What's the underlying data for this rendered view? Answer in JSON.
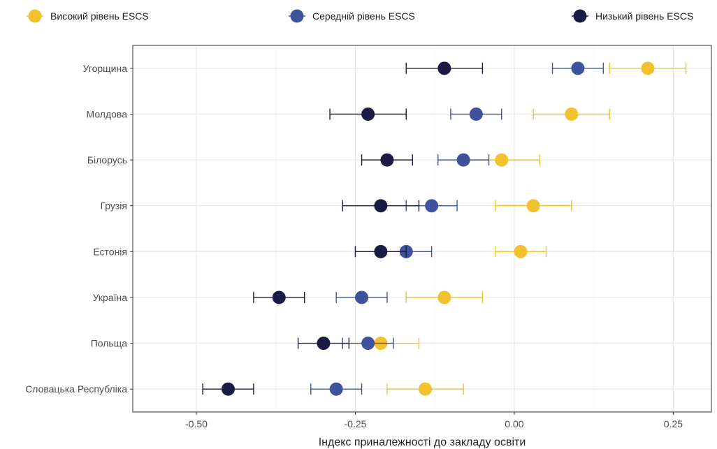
{
  "chart_data": {
    "type": "scatter",
    "subtype": "dot-with-error-bars",
    "orientation": "horizontal",
    "title": "",
    "xlabel": "Індекс приналежності до закладу освіти",
    "ylabel": "",
    "xlim": [
      -0.6,
      0.31
    ],
    "x_ticks": [
      -0.5,
      -0.25,
      0.0,
      0.25
    ],
    "x_tick_labels": [
      "-0.50",
      "-0.25",
      "0.00",
      "0.25"
    ],
    "categories": [
      "Угорщина",
      "Молдова",
      "Білорусь",
      "Грузія",
      "Естонія",
      "Україна",
      "Польща",
      "Словацька Республіка"
    ],
    "grid": true,
    "legend_position": "top",
    "series": [
      {
        "name": "Високий рівень ESCS",
        "color": "#F2C12E",
        "values": [
          0.21,
          0.09,
          -0.02,
          0.03,
          0.01,
          -0.11,
          -0.21,
          -0.14
        ],
        "lower": [
          0.15,
          0.03,
          -0.08,
          -0.03,
          -0.03,
          -0.17,
          -0.27,
          -0.2
        ],
        "upper": [
          0.27,
          0.15,
          0.04,
          0.09,
          0.05,
          -0.05,
          -0.15,
          -0.08
        ]
      },
      {
        "name": "Середній рівень ESCS",
        "color": "#3F529C",
        "values": [
          0.1,
          -0.06,
          -0.08,
          -0.13,
          -0.17,
          -0.24,
          -0.23,
          -0.28
        ],
        "lower": [
          0.06,
          -0.1,
          -0.12,
          -0.17,
          -0.21,
          -0.28,
          -0.27,
          -0.32
        ],
        "upper": [
          0.14,
          -0.02,
          -0.04,
          -0.09,
          -0.13,
          -0.2,
          -0.19,
          -0.24
        ]
      },
      {
        "name": "Низький рівень ESCS",
        "color": "#1C1B45",
        "values": [
          -0.11,
          -0.23,
          -0.2,
          -0.21,
          -0.21,
          -0.37,
          -0.3,
          -0.45
        ],
        "lower": [
          -0.17,
          -0.29,
          -0.24,
          -0.27,
          -0.25,
          -0.41,
          -0.34,
          -0.49
        ],
        "upper": [
          -0.05,
          -0.17,
          -0.16,
          -0.15,
          -0.17,
          -0.33,
          -0.26,
          -0.41
        ]
      }
    ]
  }
}
